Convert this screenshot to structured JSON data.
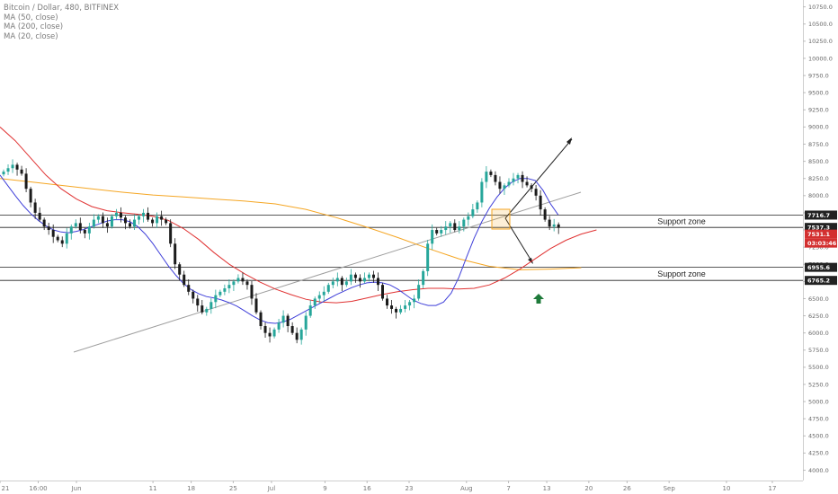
{
  "legend": {
    "title": "Bitcoin / Dollar, 480, BITFINEX",
    "ma50": "MA (50, close)",
    "ma200": "MA (200, close)",
    "ma20": "MA (20, close)"
  },
  "colors": {
    "up": "#26a69a",
    "down": "#1b1b1b",
    "ma20": "#3f3fd9",
    "ma50": "#e03232",
    "ma200": "#f5a623",
    "current": "#d32f2f",
    "arrow_up": "#1e7a3a"
  },
  "zones": [
    {
      "label": "Support zone",
      "top": 7716.7,
      "bottom": 7537.3
    },
    {
      "label": "Support zone",
      "top": 6955.6,
      "bottom": 6765.2
    }
  ],
  "price_labels": {
    "zone1_top": "7716.7",
    "zone1_bottom": "7537.3",
    "current": "7531.1",
    "countdown": "03:03:46",
    "zone2_top": "6955.6",
    "zone2_bottom": "6765.2"
  },
  "chart_data": {
    "type": "candlestick",
    "ylim": [
      3850,
      10850
    ],
    "xlim": [
      0,
      210
    ],
    "y_ticks": [
      "10750.0",
      "10500.0",
      "10250.0",
      "10000.0",
      "9750.0",
      "9500.0",
      "9250.0",
      "9000.0",
      "8750.0",
      "8500.0",
      "8250.0",
      "8000.0",
      "7750.0",
      "7500.0",
      "7250.0",
      "7000.0",
      "6750.0",
      "6500.0",
      "6250.0",
      "6000.0",
      "5750.0",
      "5500.0",
      "5250.0",
      "5000.0",
      "4750.0",
      "4500.0",
      "4250.0",
      "4000.0"
    ],
    "x_ticks": [
      {
        "label": "21",
        "x": 0
      },
      {
        "label": "16:00",
        "x": 10
      },
      {
        "label": "Jun",
        "x": 20
      },
      {
        "label": "11",
        "x": 40
      },
      {
        "label": "18",
        "x": 50
      },
      {
        "label": "25",
        "x": 61
      },
      {
        "label": "Jul",
        "x": 71
      },
      {
        "label": "9",
        "x": 85
      },
      {
        "label": "16",
        "x": 96
      },
      {
        "label": "23",
        "x": 107
      },
      {
        "label": "Aug",
        "x": 122
      },
      {
        "label": "7",
        "x": 133
      },
      {
        "label": "13",
        "x": 143
      },
      {
        "label": "20",
        "x": 154
      },
      {
        "label": "26",
        "x": 164
      },
      {
        "label": "Sep",
        "x": 175
      },
      {
        "label": "10",
        "x": 190
      },
      {
        "label": "17",
        "x": 202
      }
    ],
    "closes": [
      8350,
      8400,
      8450,
      8380,
      8320,
      8100,
      7900,
      7750,
      7650,
      7550,
      7500,
      7400,
      7350,
      7300,
      7450,
      7550,
      7600,
      7500,
      7450,
      7550,
      7650,
      7700,
      7600,
      7550,
      7700,
      7750,
      7680,
      7600,
      7550,
      7650,
      7700,
      7750,
      7650,
      7600,
      7700,
      7650,
      7600,
      7300,
      7000,
      6850,
      6700,
      6600,
      6500,
      6400,
      6300,
      6350,
      6450,
      6550,
      6600,
      6650,
      6700,
      6750,
      6800,
      6750,
      6700,
      6500,
      6300,
      6100,
      6000,
      5950,
      6050,
      6150,
      6250,
      6100,
      6000,
      5900,
      6050,
      6250,
      6400,
      6500,
      6550,
      6600,
      6700,
      6750,
      6800,
      6700,
      6750,
      6850,
      6800,
      6750,
      6800,
      6850,
      6800,
      6700,
      6500,
      6400,
      6350,
      6300,
      6350,
      6400,
      6450,
      6500,
      6700,
      6900,
      7300,
      7500,
      7450,
      7500,
      7550,
      7600,
      7500,
      7550,
      7650,
      7700,
      7800,
      7900,
      8200,
      8350,
      8300,
      8200,
      8100,
      8150,
      8200,
      8250,
      8300,
      8200,
      8150,
      8100,
      8000,
      7800,
      7650,
      7550,
      7580,
      7531
    ],
    "ma20": [
      8300,
      8150,
      8000,
      7860,
      7740,
      7640,
      7560,
      7500,
      7470,
      7460,
      7480,
      7510,
      7550,
      7590,
      7630,
      7650,
      7650,
      7620,
      7550,
      7440,
      7300,
      7140,
      6980,
      6840,
      6720,
      6630,
      6570,
      6530,
      6510,
      6480,
      6440,
      6390,
      6320,
      6250,
      6190,
      6150,
      6140,
      6160,
      6200,
      6260,
      6320,
      6380,
      6440,
      6500,
      6560,
      6610,
      6660,
      6700,
      6730,
      6740,
      6730,
      6700,
      6640,
      6560,
      6480,
      6430,
      6400,
      6400,
      6450,
      6580,
      6810,
      7100,
      7380,
      7620,
      7820,
      7980,
      8110,
      8200,
      8250,
      8250,
      8220,
      8080,
      7880,
      7720
    ],
    "ma20_x": [
      0,
      2,
      4,
      6,
      8,
      10,
      12,
      14,
      16,
      18,
      20,
      22,
      24,
      26,
      28,
      30,
      32,
      34,
      36,
      38,
      40,
      42,
      44,
      46,
      48,
      50,
      52,
      54,
      56,
      58,
      60,
      62,
      64,
      66,
      68,
      70,
      72,
      74,
      76,
      78,
      80,
      82,
      84,
      86,
      88,
      90,
      92,
      94,
      96,
      98,
      100,
      102,
      104,
      106,
      108,
      110,
      112,
      114,
      116,
      118,
      120,
      122,
      124,
      126,
      128,
      130,
      132,
      134,
      136,
      138,
      140,
      142,
      144,
      146
    ],
    "ma50": [
      9000,
      8800,
      8550,
      8300,
      8100,
      7950,
      7840,
      7780,
      7750,
      7730,
      7700,
      7640,
      7520,
      7360,
      7170,
      7000,
      6860,
      6740,
      6640,
      6560,
      6490,
      6450,
      6440,
      6460,
      6510,
      6560,
      6600,
      6630,
      6650,
      6650,
      6640,
      6650,
      6700,
      6800,
      6930,
      7080,
      7230,
      7350,
      7440,
      7500
    ],
    "ma50_x": [
      0,
      4,
      8,
      12,
      16,
      20,
      24,
      28,
      32,
      36,
      40,
      44,
      48,
      52,
      56,
      60,
      64,
      68,
      72,
      76,
      80,
      84,
      88,
      92,
      96,
      100,
      104,
      108,
      112,
      116,
      120,
      124,
      128,
      132,
      136,
      140,
      144,
      148,
      152,
      156
    ],
    "ma200": [
      8250,
      8200,
      8150,
      8100,
      8050,
      8010,
      7980,
      7950,
      7920,
      7880,
      7800,
      7680,
      7540,
      7390,
      7230,
      7080,
      6970,
      6920,
      6930,
      6950
    ],
    "ma200_x": [
      0,
      8,
      16,
      24,
      32,
      40,
      48,
      56,
      64,
      72,
      80,
      88,
      96,
      104,
      112,
      120,
      128,
      136,
      144,
      152
    ]
  }
}
